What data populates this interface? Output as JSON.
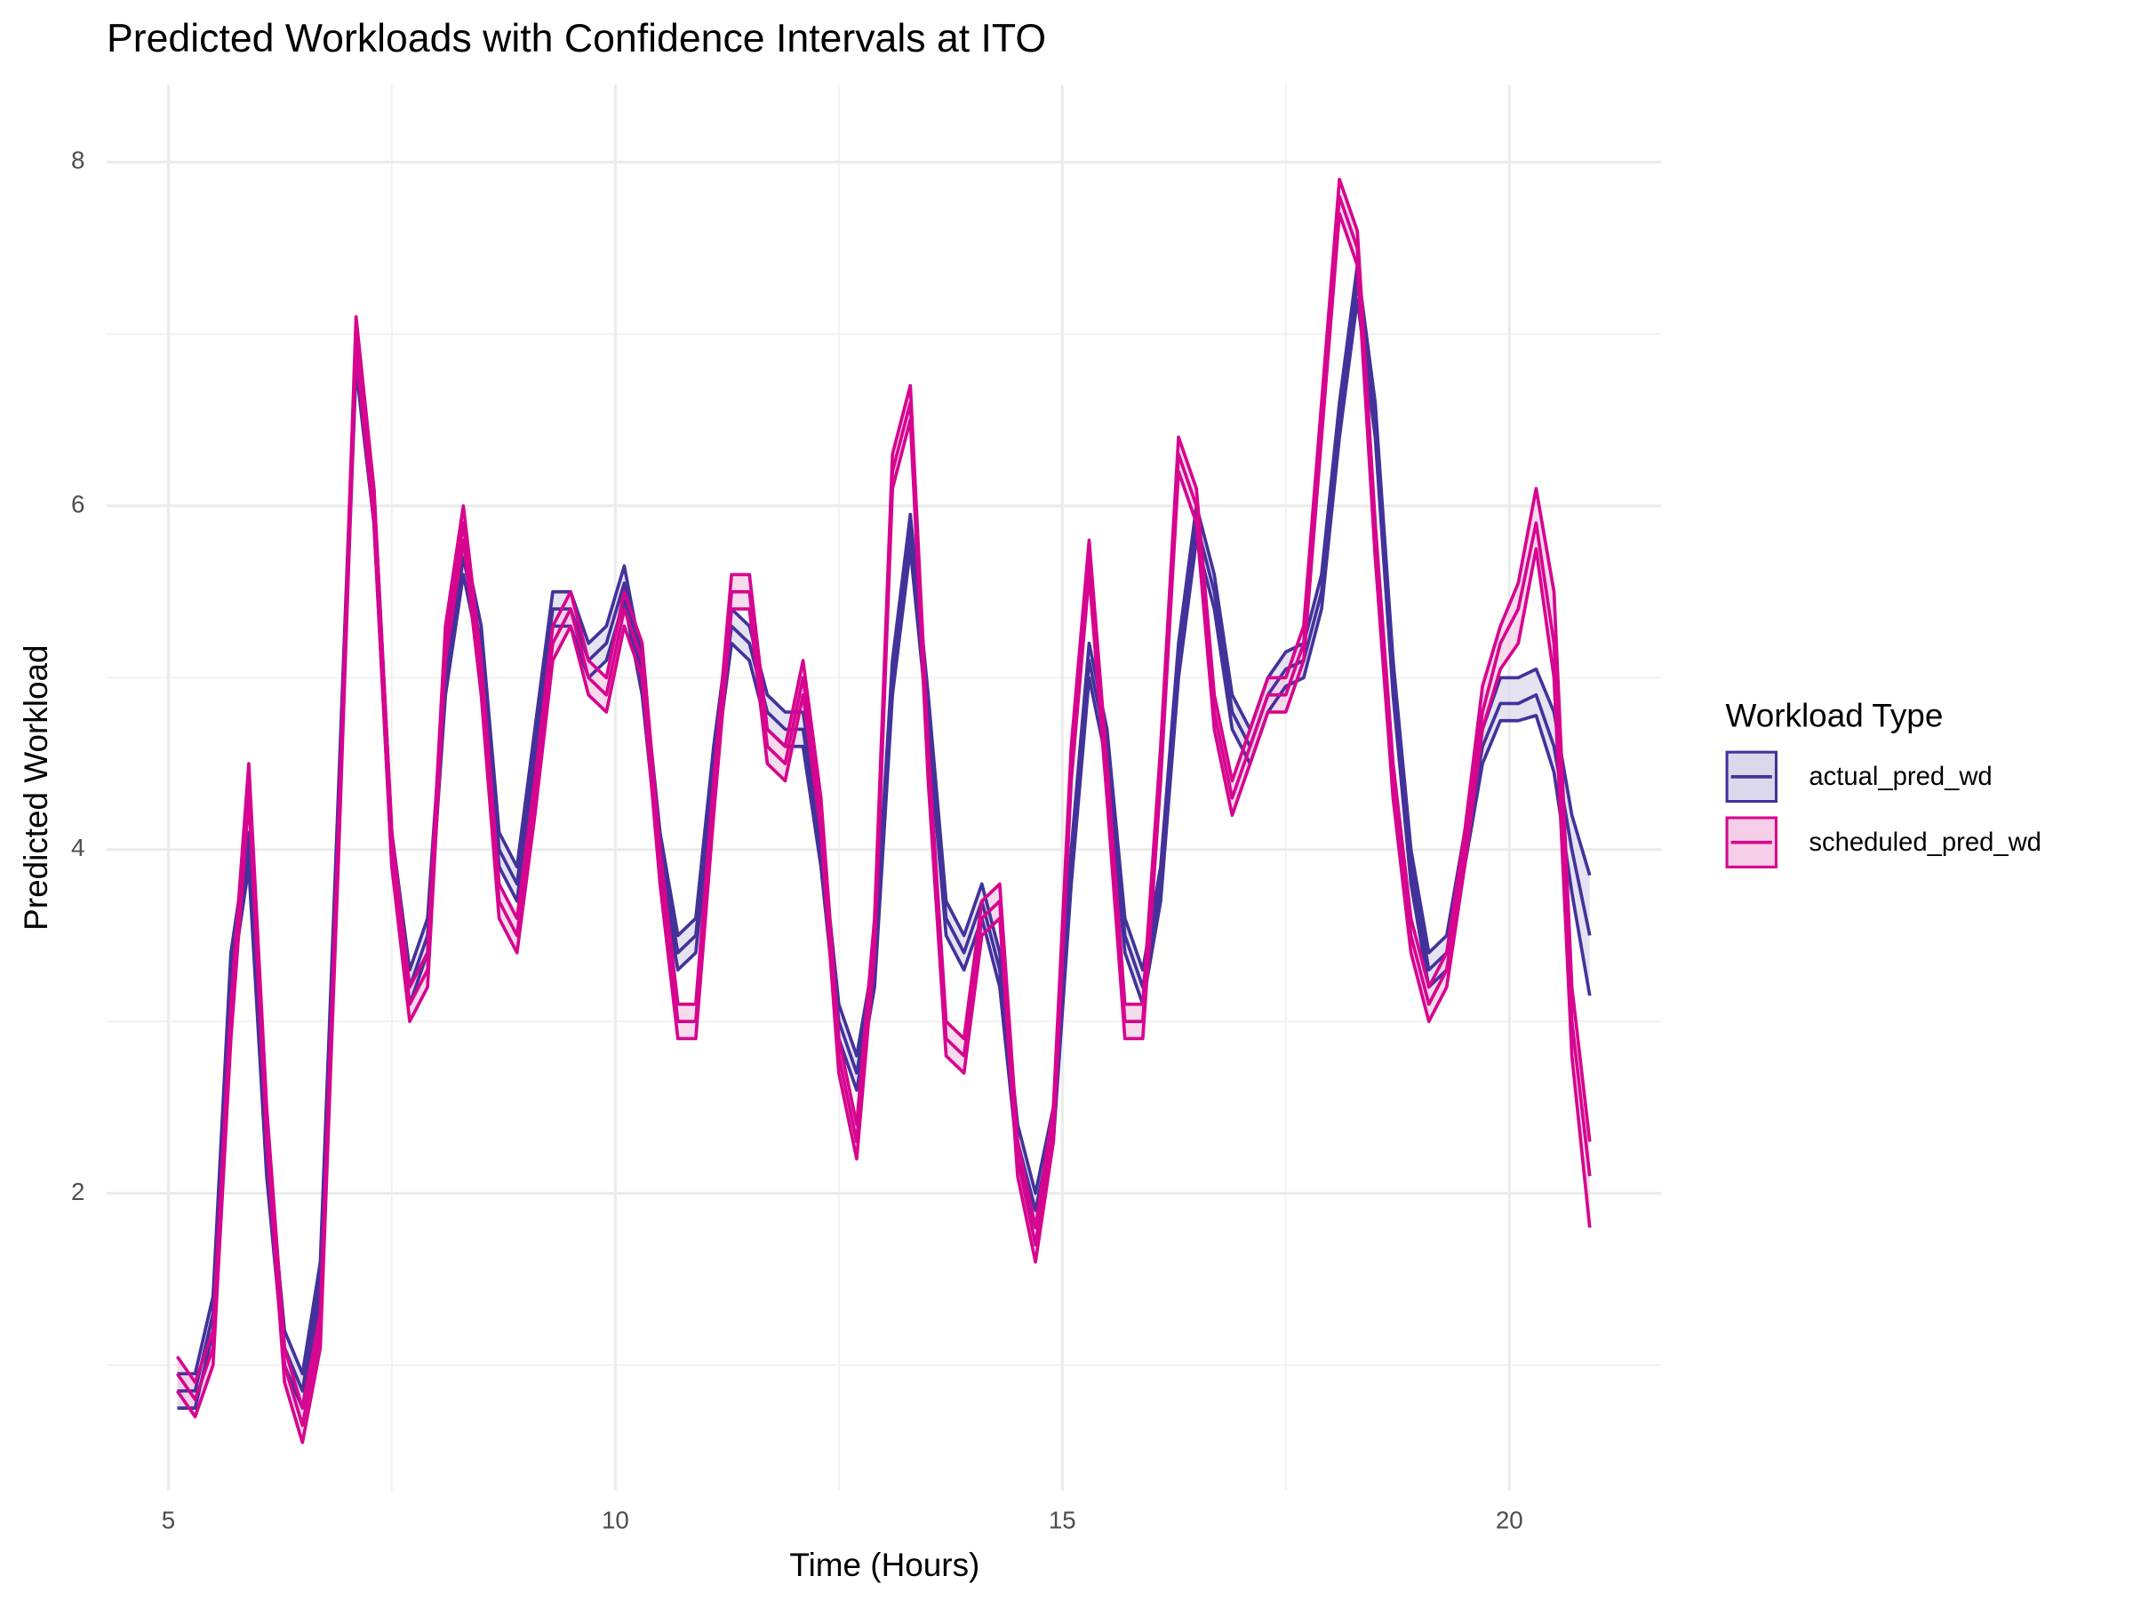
{
  "chart_data": {
    "type": "line",
    "title": "Predicted Workloads with Confidence Intervals at ITO",
    "x_label": "Time (Hours)",
    "y_label": "Predicted Workload",
    "legend_title": "Workload Type",
    "legend_position": "right",
    "grid": true,
    "xlim": [
      4.31,
      21.7
    ],
    "ylim": [
      0.27,
      8.45
    ],
    "xticks": [
      5,
      10,
      15,
      20
    ],
    "yticks": [
      2,
      4,
      6,
      8
    ],
    "xminor": [
      7.5,
      12.5,
      17.5
    ],
    "yminor": [
      1,
      3,
      5,
      7
    ],
    "x": [
      5.1,
      5.3,
      5.5,
      5.7,
      5.9,
      6.1,
      6.3,
      6.5,
      6.7,
      6.9,
      7.1,
      7.3,
      7.5,
      7.7,
      7.9,
      8.1,
      8.3,
      8.5,
      8.7,
      8.9,
      9.1,
      9.3,
      9.5,
      9.7,
      9.9,
      10.1,
      10.3,
      10.5,
      10.7,
      10.9,
      11.1,
      11.3,
      11.5,
      11.7,
      11.9,
      12.1,
      12.3,
      12.5,
      12.7,
      12.9,
      13.1,
      13.3,
      13.5,
      13.7,
      13.9,
      14.1,
      14.3,
      14.5,
      14.7,
      14.9,
      15.1,
      15.3,
      15.5,
      15.7,
      15.9,
      16.1,
      16.3,
      16.5,
      16.7,
      16.9,
      17.1,
      17.3,
      17.5,
      17.7,
      17.9,
      18.1,
      18.3,
      18.5,
      18.7,
      18.9,
      19.1,
      19.3,
      19.5,
      19.7,
      19.9,
      20.1,
      20.3,
      20.5,
      20.7,
      20.9
    ],
    "series": [
      {
        "name": "actual_pred_wd",
        "color": "#43329a",
        "fill": "#dcd8ec",
        "values": [
          0.85,
          0.85,
          1.3,
          3.3,
          4.0,
          2.2,
          1.1,
          0.85,
          1.5,
          4.2,
          6.9,
          6.0,
          4.0,
          3.2,
          3.5,
          5.0,
          5.7,
          5.2,
          4.0,
          3.8,
          4.6,
          5.4,
          5.4,
          5.1,
          5.2,
          5.55,
          5.0,
          4.0,
          3.4,
          3.5,
          4.5,
          5.3,
          5.2,
          4.8,
          4.7,
          4.7,
          4.0,
          3.0,
          2.7,
          3.3,
          5.0,
          5.85,
          4.8,
          3.6,
          3.4,
          3.7,
          3.3,
          2.3,
          1.9,
          2.4,
          3.9,
          5.1,
          4.6,
          3.5,
          3.2,
          3.8,
          5.1,
          5.9,
          5.5,
          4.8,
          4.6,
          4.9,
          5.05,
          5.1,
          5.5,
          6.5,
          7.3,
          6.5,
          5.0,
          3.9,
          3.3,
          3.4,
          4.0,
          4.6,
          4.85,
          4.85,
          4.9,
          4.6,
          4.0,
          3.5
        ],
        "lower": [
          0.75,
          0.75,
          1.2,
          3.2,
          3.9,
          2.1,
          1.0,
          0.75,
          1.4,
          4.1,
          6.8,
          5.9,
          3.9,
          3.1,
          3.4,
          4.9,
          5.6,
          5.1,
          3.9,
          3.7,
          4.5,
          5.3,
          5.3,
          5.0,
          5.1,
          5.45,
          4.9,
          3.9,
          3.3,
          3.4,
          4.4,
          5.2,
          5.1,
          4.7,
          4.6,
          4.6,
          3.9,
          2.9,
          2.6,
          3.2,
          4.9,
          5.75,
          4.7,
          3.5,
          3.3,
          3.6,
          3.2,
          2.2,
          1.8,
          2.3,
          3.8,
          5.0,
          4.5,
          3.4,
          3.1,
          3.7,
          5.0,
          5.8,
          5.4,
          4.7,
          4.5,
          4.8,
          4.95,
          5.0,
          5.4,
          6.4,
          7.2,
          6.4,
          4.9,
          3.8,
          3.2,
          3.3,
          3.9,
          4.5,
          4.75,
          4.75,
          4.78,
          4.45,
          3.75,
          3.15
        ],
        "upper": [
          0.95,
          0.95,
          1.4,
          3.4,
          4.1,
          2.3,
          1.2,
          0.95,
          1.6,
          4.3,
          7.0,
          6.1,
          4.1,
          3.3,
          3.6,
          5.1,
          5.8,
          5.3,
          4.1,
          3.9,
          4.7,
          5.5,
          5.5,
          5.2,
          5.3,
          5.65,
          5.1,
          4.1,
          3.5,
          3.6,
          4.6,
          5.4,
          5.3,
          4.9,
          4.8,
          4.8,
          4.1,
          3.1,
          2.8,
          3.4,
          5.1,
          5.95,
          4.9,
          3.7,
          3.5,
          3.8,
          3.4,
          2.4,
          2.0,
          2.5,
          4.0,
          5.2,
          4.7,
          3.6,
          3.3,
          3.9,
          5.2,
          6.0,
          5.6,
          4.9,
          4.7,
          5.0,
          5.15,
          5.2,
          5.6,
          6.6,
          7.4,
          6.6,
          5.1,
          4.0,
          3.4,
          3.5,
          4.1,
          4.7,
          5.0,
          5.0,
          5.05,
          4.8,
          4.2,
          3.85
        ]
      },
      {
        "name": "scheduled_pred_wd",
        "color": "#d6058f",
        "fill": "#f4cde6",
        "values": [
          0.95,
          0.8,
          1.1,
          3.0,
          4.4,
          2.4,
          1.0,
          0.65,
          1.2,
          4.0,
          7.0,
          6.0,
          4.0,
          3.1,
          3.3,
          5.2,
          5.9,
          5.0,
          3.7,
          3.5,
          4.3,
          5.2,
          5.4,
          5.0,
          4.9,
          5.4,
          5.1,
          3.9,
          3.0,
          3.0,
          4.3,
          5.5,
          5.5,
          4.6,
          4.5,
          5.0,
          4.2,
          2.8,
          2.3,
          3.5,
          6.2,
          6.6,
          4.5,
          2.9,
          2.8,
          3.6,
          3.7,
          2.2,
          1.7,
          2.4,
          4.5,
          5.7,
          4.4,
          3.0,
          3.0,
          4.5,
          6.3,
          6.0,
          4.8,
          4.3,
          4.6,
          4.9,
          4.9,
          5.2,
          6.5,
          7.8,
          7.5,
          5.8,
          4.4,
          3.5,
          3.1,
          3.3,
          4.0,
          4.8,
          5.2,
          5.4,
          5.9,
          5.2,
          3.0,
          2.1
        ],
        "lower": [
          0.85,
          0.7,
          1.0,
          2.9,
          4.3,
          2.3,
          0.9,
          0.55,
          1.1,
          3.9,
          6.9,
          5.9,
          3.9,
          3.0,
          3.2,
          5.1,
          5.8,
          4.9,
          3.6,
          3.4,
          4.2,
          5.1,
          5.3,
          4.9,
          4.8,
          5.3,
          5.0,
          3.8,
          2.9,
          2.9,
          4.2,
          5.4,
          5.4,
          4.5,
          4.4,
          4.9,
          4.1,
          2.7,
          2.2,
          3.4,
          6.1,
          6.5,
          4.4,
          2.8,
          2.7,
          3.5,
          3.6,
          2.1,
          1.6,
          2.3,
          4.4,
          5.6,
          4.3,
          2.9,
          2.9,
          4.4,
          6.2,
          5.9,
          4.7,
          4.2,
          4.5,
          4.8,
          4.8,
          5.1,
          6.4,
          7.7,
          7.4,
          5.7,
          4.3,
          3.4,
          3.0,
          3.2,
          3.9,
          4.7,
          5.05,
          5.2,
          5.75,
          5.0,
          2.8,
          1.8
        ],
        "upper": [
          1.05,
          0.9,
          1.2,
          3.1,
          4.5,
          2.5,
          1.1,
          0.75,
          1.3,
          4.1,
          7.1,
          6.1,
          4.1,
          3.2,
          3.4,
          5.3,
          6.0,
          5.1,
          3.8,
          3.6,
          4.4,
          5.3,
          5.5,
          5.1,
          5.0,
          5.5,
          5.2,
          4.0,
          3.1,
          3.1,
          4.4,
          5.6,
          5.6,
          4.7,
          4.6,
          5.1,
          4.3,
          2.9,
          2.4,
          3.6,
          6.3,
          6.7,
          4.6,
          3.0,
          2.9,
          3.7,
          3.8,
          2.3,
          1.8,
          2.5,
          4.6,
          5.8,
          4.5,
          3.1,
          3.1,
          4.6,
          6.4,
          6.1,
          4.9,
          4.4,
          4.7,
          5.0,
          5.0,
          5.3,
          6.6,
          7.9,
          7.6,
          5.9,
          4.5,
          3.6,
          3.2,
          3.4,
          4.1,
          4.95,
          5.3,
          5.55,
          6.1,
          5.5,
          3.2,
          2.3
        ]
      }
    ]
  }
}
